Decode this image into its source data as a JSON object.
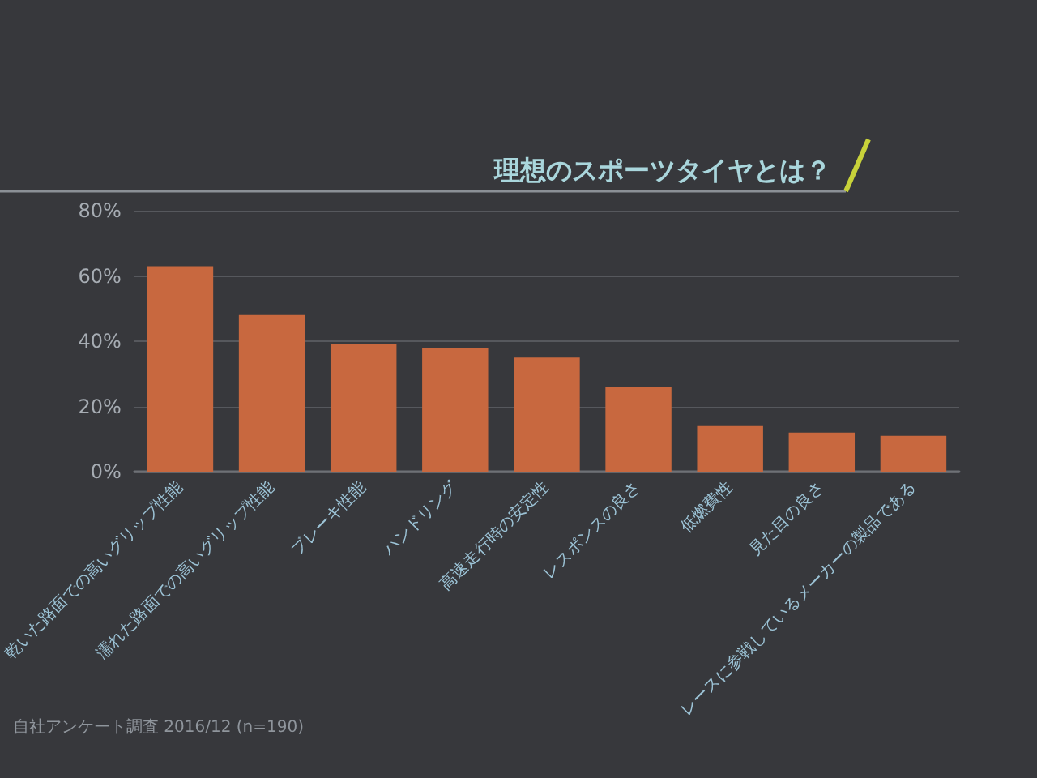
{
  "chart_data": {
    "type": "bar",
    "title": "理想のスポーツタイヤとは？",
    "categories": [
      "乾いた路面での高いグリップ性能",
      "濡れた路面での高いグリップ性能",
      "ブレーキ性能",
      "ハンドリング",
      "高速走行時の安定性",
      "レスポンスの良さ",
      "低燃費性",
      "見た目の良さ",
      "レースに参戦しているメーカーの製品である"
    ],
    "values": [
      63,
      48,
      39,
      38,
      35,
      26,
      14,
      12,
      11
    ],
    "color": "#c8683f",
    "ylim": [
      0,
      80
    ],
    "yticks": [
      {
        "value": 0,
        "label": "0%"
      },
      {
        "value": 20,
        "label": "20%"
      },
      {
        "value": 40,
        "label": "40%"
      },
      {
        "value": 60,
        "label": "60%"
      },
      {
        "value": 80,
        "label": "80%"
      }
    ],
    "grid": "y",
    "annotations": [
      "自社アンケート調査 2016/12 (n=190)"
    ]
  }
}
